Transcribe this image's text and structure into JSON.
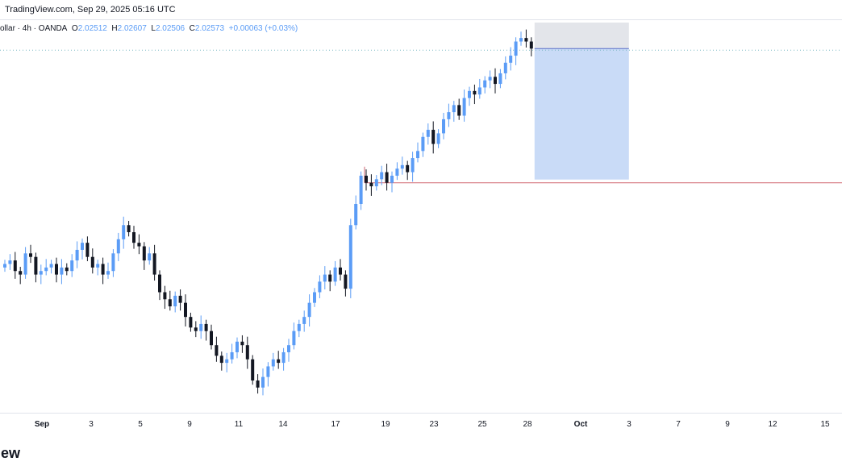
{
  "header": {
    "source_line": "TradingView.com, Sep 29, 2025 05:16 UTC"
  },
  "legend": {
    "symbol": "ollar · 4h · OANDA",
    "o_label": "O",
    "o_value": "2.02512",
    "h_label": "H",
    "h_value": "2.02607",
    "l_label": "L",
    "l_value": "2.02506",
    "c_label": "C",
    "c_value": "2.02573",
    "change": "+0.00063 (+0.03%)"
  },
  "xaxis": {
    "labels": [
      {
        "text": "Sep",
        "bold": true
      },
      {
        "text": "3"
      },
      {
        "text": "5"
      },
      {
        "text": "9"
      },
      {
        "text": "11"
      },
      {
        "text": "14"
      },
      {
        "text": "17"
      },
      {
        "text": "19"
      },
      {
        "text": "23"
      },
      {
        "text": "25"
      },
      {
        "text": "28"
      },
      {
        "text": "Oct",
        "bold": true
      },
      {
        "text": "3"
      },
      {
        "text": "7"
      },
      {
        "text": "9"
      },
      {
        "text": "12"
      },
      {
        "text": "15"
      }
    ]
  },
  "footer": {
    "logo_text": "iew"
  },
  "colors": {
    "up": "#5b9cf6",
    "down": "#131722",
    "target_zone": "#c9dbf7",
    "stop_zone": "#e3e5ea",
    "red_line": "#d26a74",
    "entry_line": "#5b6fc7",
    "price_dotted": "#7ab8c4"
  },
  "position_tool": {
    "type": "short-position",
    "visible": true
  },
  "chart_data": {
    "type": "candlestick",
    "timeframe": "4h",
    "y_range": [
      0,
      100
    ],
    "candle_close_trace": [
      63,
      64,
      61,
      60,
      66,
      65,
      60,
      61,
      62,
      63,
      60,
      62,
      61,
      64,
      67,
      69,
      65,
      62,
      63,
      60,
      61,
      66,
      70,
      74,
      72,
      69,
      68,
      64,
      66,
      60,
      55,
      53,
      51,
      54,
      52,
      48,
      45,
      44,
      46,
      44,
      40,
      37,
      35,
      36,
      38,
      41,
      40,
      36,
      30,
      28,
      31,
      34,
      36,
      35,
      38,
      40,
      44,
      46,
      48,
      52,
      55,
      58,
      60,
      58,
      62,
      60,
      56,
      74,
      80,
      88,
      86,
      85,
      87,
      89,
      86,
      88,
      90,
      91,
      89,
      93,
      95,
      99,
      101,
      97,
      100,
      104,
      106,
      108,
      105,
      110,
      112,
      111,
      113,
      115,
      116,
      114,
      117,
      120,
      122,
      126,
      127,
      126,
      124
    ],
    "price_line_level": 124,
    "red_line_level": 86
  }
}
